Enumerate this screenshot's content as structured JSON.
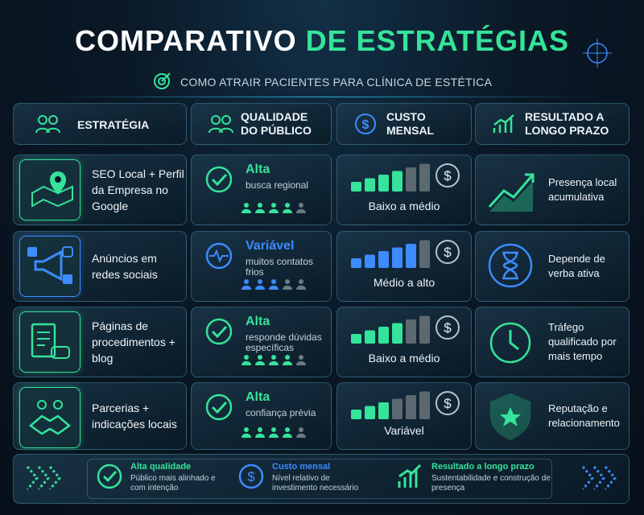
{
  "header": {
    "title_main": "COMPARATIVO",
    "title_accent": "DE ESTRATÉGIAS",
    "subtitle": "COMO ATRAIR PACIENTES PARA CLÍNICA DE ESTÉTICA"
  },
  "table": {
    "columns": [
      "ESTRATÉGIA",
      "QUALIDADE DO PÚBLICO",
      "CUSTO MENSAL",
      "RESULTADO A LONGO PRAZO"
    ],
    "audience_scale": 5,
    "cost_scale": 6,
    "rows": [
      {
        "strategy": "SEO Local + Perfil da Empresa no Google",
        "quality": "Alta",
        "quality_note": "busca regional",
        "accent": "#35e39a",
        "audience_level": 4,
        "cost_level": 4,
        "cost": "Baixo a médio",
        "result": "Presença local acumulativa"
      },
      {
        "strategy": "Anúncios em redes sociais",
        "quality": "Variável",
        "quality_note": "muitos contatos frios",
        "accent": "#3d8bff",
        "audience_level": 3,
        "cost_level": 5,
        "cost": "Médio a alto",
        "result": "Depende de verba ativa"
      },
      {
        "strategy": "Páginas de procedimentos + blog",
        "quality": "Alta",
        "quality_note": "responde dúvidas específicas",
        "accent": "#35e39a",
        "audience_level": 4,
        "cost_level": 4,
        "cost": "Baixo a médio",
        "result": "Tráfego qualificado por mais tempo"
      },
      {
        "strategy": "Parcerias + indicações locais",
        "quality": "Alta",
        "quality_note": "confiança prévia",
        "accent": "#35e39a",
        "audience_level": 4,
        "cost_level": 3,
        "cost": "Variável",
        "result": "Reputação e relacionamento"
      }
    ]
  },
  "legend": [
    {
      "title": "Alta qualidade",
      "text": "Público mais alinhado e com intenção"
    },
    {
      "title": "Custo mensal",
      "text": "Nível relativo de investimento necessário"
    },
    {
      "title": "Resultado a longo prazo",
      "text": "Sustentabilidade e construção de presença"
    }
  ]
}
